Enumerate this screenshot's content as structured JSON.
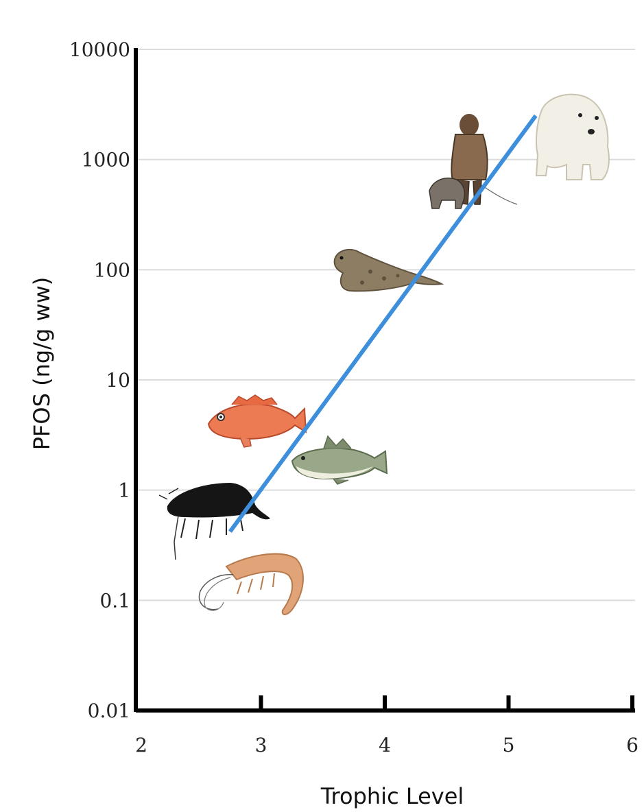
{
  "chart_data": {
    "type": "line",
    "title": "",
    "xlabel": "Trophic Level",
    "ylabel": "PFOS (ng/g ww)",
    "xlim": [
      2,
      6
    ],
    "ylim": [
      0.01,
      10000
    ],
    "y_scale": "log",
    "x_ticks": [
      "2",
      "3",
      "4",
      "5",
      "6"
    ],
    "y_ticks": [
      "0.01",
      "0.1",
      "1",
      "10",
      "100",
      "1000",
      "10000"
    ],
    "grid": "horizontal",
    "series": [
      {
        "x": [
          2.75,
          5.22
        ],
        "y": [
          0.42,
          2500
        ],
        "color": "#3d8fdc"
      }
    ],
    "organisms": [
      {
        "icon": "shrimp-icon",
        "x": 3.0,
        "y": 0.11
      },
      {
        "icon": "amphipod-icon",
        "x": 2.75,
        "y": 0.65
      },
      {
        "icon": "redfish-icon",
        "x": 3.0,
        "y": 4.5
      },
      {
        "icon": "cod-icon",
        "x": 3.65,
        "y": 1.8
      },
      {
        "icon": "seal-icon",
        "x": 3.85,
        "y": 100
      },
      {
        "icon": "human-with-dog-icon",
        "x": 4.7,
        "y": 700
      },
      {
        "icon": "polar-bear-icon",
        "x": 5.5,
        "y": 1600
      }
    ]
  }
}
